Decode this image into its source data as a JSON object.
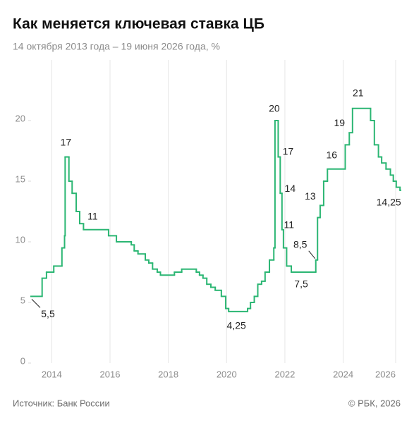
{
  "chart_data": {
    "type": "step",
    "title": "Как меняется ключевая ставка ЦБ",
    "subtitle": "14 октября 2013 года – 19 июня 2026 года, %",
    "source": "Источник: Банк России",
    "credit": "© РБК, 2026",
    "color": "#2bb673",
    "xlim": [
      2013.79,
      2026.47
    ],
    "ylim": [
      0,
      25
    ],
    "yticks": [
      0,
      5,
      10,
      15,
      20
    ],
    "xticks": [
      {
        "value": 2014.5,
        "label": "2014"
      },
      {
        "value": 2016.5,
        "label": "2016"
      },
      {
        "value": 2018.5,
        "label": "2018"
      },
      {
        "value": 2020.5,
        "label": "2020"
      },
      {
        "value": 2022.5,
        "label": "2022"
      },
      {
        "value": 2024.5,
        "label": "2024"
      },
      {
        "value": 2026.3,
        "label": "2026"
      }
    ],
    "grid": true,
    "x": [
      2013.79,
      2014.17,
      2014.32,
      2014.57,
      2014.85,
      2014.94,
      2014.96,
      2015.09,
      2015.2,
      2015.34,
      2015.46,
      2015.59,
      2016.45,
      2016.72,
      2017.23,
      2017.33,
      2017.46,
      2017.71,
      2017.83,
      2017.96,
      2018.12,
      2018.23,
      2018.71,
      2018.96,
      2019.46,
      2019.57,
      2019.69,
      2019.82,
      2019.96,
      2020.11,
      2020.32,
      2020.47,
      2020.57,
      2021.22,
      2021.32,
      2021.45,
      2021.57,
      2021.7,
      2021.82,
      2021.97,
      2022.12,
      2022.16,
      2022.27,
      2022.34,
      2022.4,
      2022.45,
      2022.56,
      2022.72,
      2023.56,
      2023.62,
      2023.71,
      2023.83,
      2023.96,
      2024.57,
      2024.71,
      2024.82,
      2025.44,
      2025.57,
      2025.71,
      2025.82,
      2025.97,
      2026.12,
      2026.22,
      2026.32,
      2026.45
    ],
    "values": [
      5.5,
      7,
      7.5,
      8,
      9.5,
      10.5,
      17,
      15,
      14,
      12.5,
      11.5,
      11,
      10.5,
      10,
      9.75,
      9.25,
      9,
      8.5,
      8.25,
      7.75,
      7.5,
      7.25,
      7.5,
      7.75,
      7.5,
      7.25,
      7,
      6.5,
      6.25,
      6,
      5.5,
      4.5,
      4.25,
      4.5,
      5,
      5.5,
      6.5,
      6.75,
      7.5,
      8.5,
      9.5,
      20,
      17,
      14,
      11,
      9.5,
      8,
      7.5,
      8.5,
      12,
      13,
      15,
      16,
      18,
      19,
      21,
      20,
      18,
      17,
      16.5,
      16,
      15.5,
      15,
      14.5,
      14.25
    ],
    "annotations": [
      {
        "text": "5,5",
        "x": 2013.79,
        "y": 5.5
      },
      {
        "text": "17",
        "x": 2014.96,
        "y": 17
      },
      {
        "text": "11",
        "x": 2015.59,
        "y": 11
      },
      {
        "text": "4,25",
        "x": 2020.57,
        "y": 4.25
      },
      {
        "text": "20",
        "x": 2022.16,
        "y": 20
      },
      {
        "text": "17",
        "x": 2022.27,
        "y": 17
      },
      {
        "text": "14",
        "x": 2022.34,
        "y": 14
      },
      {
        "text": "11",
        "x": 2022.4,
        "y": 11
      },
      {
        "text": "8,5",
        "x": 2023.56,
        "y": 8.5
      },
      {
        "text": "7,5",
        "x": 2022.72,
        "y": 7.5
      },
      {
        "text": "13",
        "x": 2023.71,
        "y": 13
      },
      {
        "text": "16",
        "x": 2023.96,
        "y": 16
      },
      {
        "text": "19",
        "x": 2024.71,
        "y": 19
      },
      {
        "text": "21",
        "x": 2024.82,
        "y": 21
      },
      {
        "text": "14,25",
        "x": 2026.45,
        "y": 14.25
      }
    ]
  }
}
